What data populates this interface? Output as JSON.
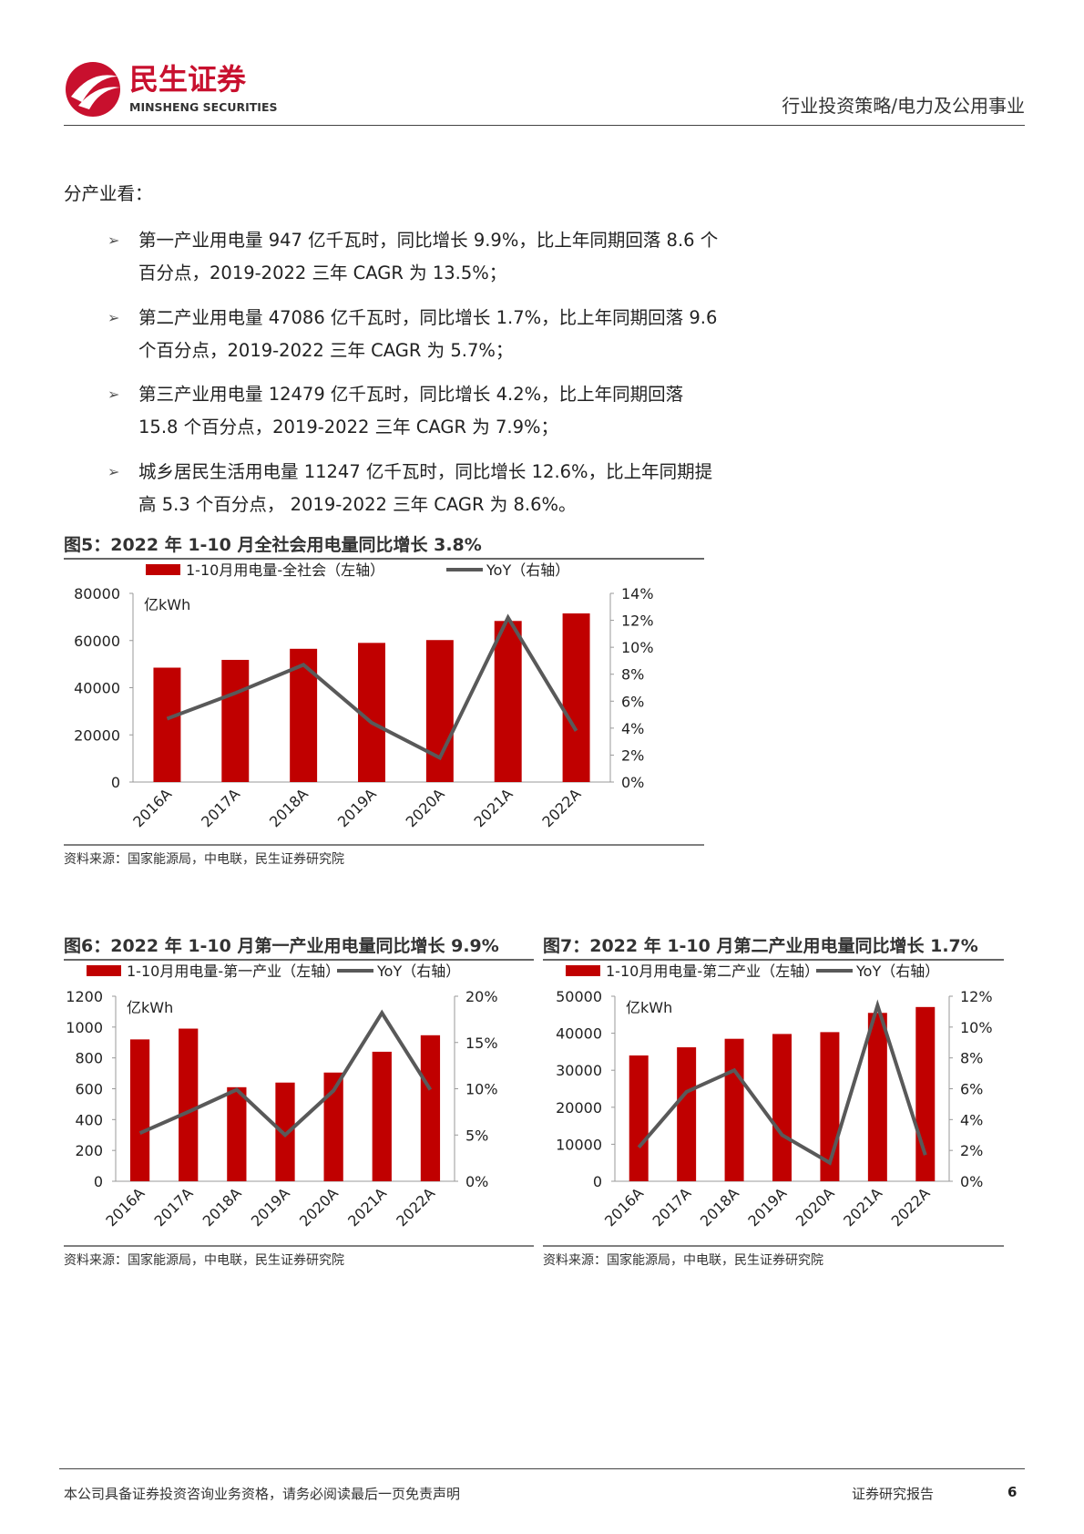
{
  "header": {
    "brand": "民生证券",
    "brand_en": "MINSHENG SECURITIES",
    "category": "行业投资策略/电力及公用事业"
  },
  "intro": "分产业看：",
  "bullets": [
    "第一产业用电量 947 亿千瓦时，同比增长 9.9%，比上年同期回落 8.6 个百分点，2019-2022 三年 CAGR 为 13.5%；",
    "第二产业用电量 47086 亿千瓦时，同比增长 1.7%，比上年同期回落 9.6 个百分点，2019-2022 三年 CAGR 为 5.7%；",
    "第三产业用电量 12479 亿千瓦时，同比增长 4.2%，比上年同期回落 15.8 个百分点，2019-2022 三年 CAGR 为 7.9%；",
    "城乡居民生活用电量 11247 亿千瓦时，同比增长 12.6%，比上年同期提高 5.3 个百分点， 2019-2022 三年 CAGR 为 8.6%。"
  ],
  "chart_data": [
    {
      "type": "bar",
      "title": "图5：2022 年 1-10 月全社会用电量同比增长 3.8%",
      "y_label": "亿kWh",
      "source": "资料来源：国家能源局，中电联，民生证券研究院",
      "categories": [
        "2016A",
        "2017A",
        "2018A",
        "2019A",
        "2020A",
        "2021A",
        "2022A"
      ],
      "series": [
        {
          "name": "1-10月用电量-全社会（左轴）",
          "color": "#c00000",
          "values": [
            48500,
            51800,
            56500,
            59000,
            60200,
            68300,
            71500
          ]
        },
        {
          "name": "YoY（右轴）",
          "color": "#595959",
          "axis": "y2",
          "values": [
            4.7,
            6.6,
            8.7,
            4.4,
            1.8,
            12.2,
            3.8
          ]
        }
      ],
      "ylim": [
        0,
        80000
      ],
      "yticks": [
        0,
        20000,
        40000,
        60000,
        80000
      ],
      "y2lim": [
        0,
        14
      ],
      "y2ticks": [
        {
          "value": 0,
          "label": "0%"
        },
        {
          "value": 2,
          "label": "2%"
        },
        {
          "value": 4,
          "label": "4%"
        },
        {
          "value": 6,
          "label": "6%"
        },
        {
          "value": 8,
          "label": "8%"
        },
        {
          "value": 10,
          "label": "10%"
        },
        {
          "value": 12,
          "label": "12%"
        },
        {
          "value": 14,
          "label": "14%"
        }
      ]
    },
    {
      "type": "bar",
      "title": "图6：2022 年 1-10 月第一产业用电量同比增长 9.9%",
      "y_label": "亿kWh",
      "source": "资料来源：国家能源局，中电联，民生证券研究院",
      "categories": [
        "2016A",
        "2017A",
        "2018A",
        "2019A",
        "2020A",
        "2021A",
        "2022A"
      ],
      "series": [
        {
          "name": "1-10月用电量-第一产业（左轴）",
          "color": "#c00000",
          "values": [
            920,
            990,
            610,
            640,
            705,
            840,
            947
          ]
        },
        {
          "name": "YoY（右轴）",
          "color": "#595959",
          "axis": "y2",
          "values": [
            5.2,
            7.5,
            9.9,
            5.0,
            9.8,
            18.2,
            9.9
          ]
        }
      ],
      "ylim": [
        0,
        1200
      ],
      "yticks": [
        0,
        200,
        400,
        600,
        800,
        1000,
        1200
      ],
      "y2lim": [
        0,
        20
      ],
      "y2ticks": [
        {
          "value": 0,
          "label": "0%"
        },
        {
          "value": 5,
          "label": "5%"
        },
        {
          "value": 10,
          "label": "10%"
        },
        {
          "value": 15,
          "label": "15%"
        },
        {
          "value": 20,
          "label": "20%"
        }
      ]
    },
    {
      "type": "bar",
      "title": "图7：2022 年 1-10 月第二产业用电量同比增长 1.7%",
      "y_label": "亿kWh",
      "source": "资料来源：国家能源局，中电联，民生证券研究院",
      "categories": [
        "2016A",
        "2017A",
        "2018A",
        "2019A",
        "2020A",
        "2021A",
        "2022A"
      ],
      "series": [
        {
          "name": "1-10月用电量-第二产业（左轴）",
          "color": "#c00000",
          "values": [
            34000,
            36200,
            38500,
            39800,
            40300,
            45500,
            47086
          ]
        },
        {
          "name": "YoY（右轴）",
          "color": "#595959",
          "axis": "y2",
          "values": [
            2.2,
            5.8,
            7.2,
            3.0,
            1.2,
            11.4,
            1.7
          ]
        }
      ],
      "ylim": [
        0,
        50000
      ],
      "yticks": [
        0,
        10000,
        20000,
        30000,
        40000,
        50000
      ],
      "y2lim": [
        0,
        12
      ],
      "y2ticks": [
        {
          "value": 0,
          "label": "0%"
        },
        {
          "value": 2,
          "label": "2%"
        },
        {
          "value": 4,
          "label": "4%"
        },
        {
          "value": 6,
          "label": "6%"
        },
        {
          "value": 8,
          "label": "8%"
        },
        {
          "value": 10,
          "label": "10%"
        },
        {
          "value": 12,
          "label": "12%"
        }
      ]
    }
  ],
  "footer": {
    "disclaimer": "本公司具备证券投资咨询业务资格，请务必阅读最后一页免责声明",
    "label": "证券研究报告",
    "page": "6"
  }
}
